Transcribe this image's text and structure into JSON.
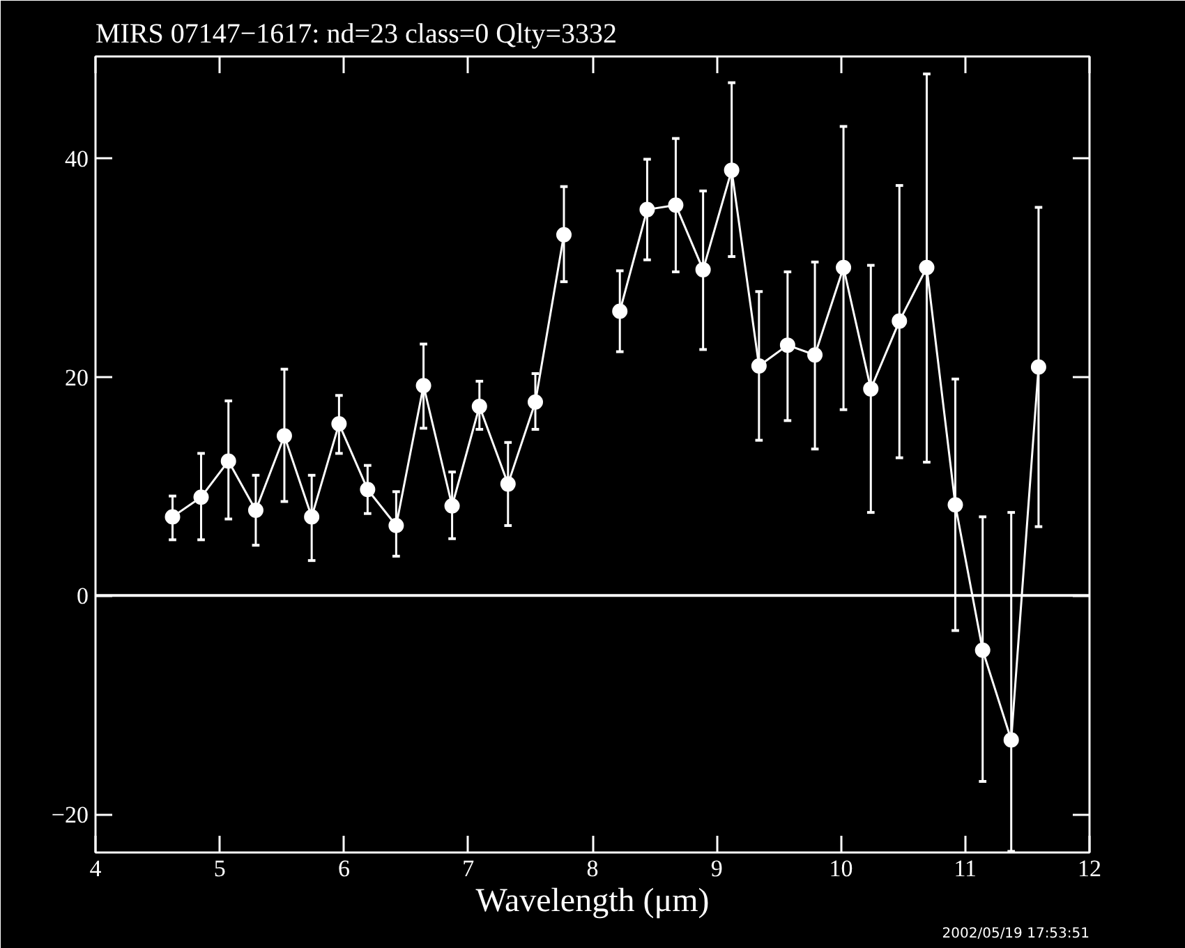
{
  "chart_data": {
    "type": "line",
    "title": "MIRS 07147−1617:     nd=23    class=0    Qlty=3332",
    "xlabel": "Wavelength (μm)",
    "x": [
      4.62,
      4.85,
      5.07,
      5.29,
      5.52,
      5.74,
      5.96,
      6.19,
      6.42,
      6.64,
      6.87,
      7.09,
      7.32,
      7.54,
      7.77,
      7.99,
      8.22,
      8.44,
      8.67,
      8.89,
      9.12,
      9.34,
      9.57,
      9.79,
      10.02,
      10.24,
      10.47,
      10.69,
      10.92,
      11.14,
      11.37,
      11.59
    ],
    "series": [
      {
        "color": "#ffffff",
        "values": [
          7.2,
          9.0,
          12.3,
          7.8,
          14.6,
          7.2,
          15.7,
          9.7,
          6.4,
          19.2,
          8.2,
          17.3,
          10.2,
          17.7,
          33.0,
          null,
          26.0,
          35.3,
          35.7,
          29.8,
          38.9,
          21.0,
          22.9,
          22.0,
          30.0,
          18.9,
          25.1,
          30.0,
          8.3,
          -5.0,
          -13.2,
          20.9
        ],
        "errors": [
          [
            5.1,
            9.1
          ],
          [
            5.1,
            13.0
          ],
          [
            7.0,
            17.8
          ],
          [
            4.6,
            11.0
          ],
          [
            8.6,
            20.7
          ],
          [
            3.2,
            11.0
          ],
          [
            13.0,
            18.3
          ],
          [
            7.5,
            11.9
          ],
          [
            3.6,
            9.5
          ],
          [
            15.3,
            23.0
          ],
          [
            5.2,
            11.3
          ],
          [
            15.2,
            19.6
          ],
          [
            6.4,
            14.0
          ],
          [
            15.2,
            20.3
          ],
          [
            28.7,
            37.4
          ],
          null,
          [
            22.3,
            29.7
          ],
          [
            30.7,
            39.9
          ],
          [
            29.6,
            41.8
          ],
          [
            22.5,
            37.0
          ],
          [
            31.0,
            46.9
          ],
          [
            14.2,
            27.8
          ],
          [
            16.0,
            29.6
          ],
          [
            13.4,
            30.5
          ],
          [
            17.0,
            42.9
          ],
          [
            7.6,
            30.2
          ],
          [
            12.6,
            37.5
          ],
          [
            12.2,
            47.7
          ],
          [
            -3.2,
            19.8
          ],
          [
            -17.0,
            7.2
          ],
          [
            -23.4,
            7.6
          ],
          [
            6.3,
            35.5
          ]
        ]
      }
    ],
    "marker": "circle",
    "line_style": "solid",
    "grid": false,
    "xlim": [
      4,
      12
    ],
    "ylim": [
      -23.5,
      49.3
    ],
    "xticks": [
      4,
      5,
      6,
      7,
      8,
      9,
      10,
      11,
      12
    ],
    "yticks": [
      -20,
      0,
      20,
      40
    ],
    "ref_lines": [
      {
        "axis": "y",
        "value": 0,
        "color": "#ffffff",
        "line_style": "solid"
      }
    ],
    "annotations": [
      "2002/05/19 17:53:51"
    ]
  }
}
